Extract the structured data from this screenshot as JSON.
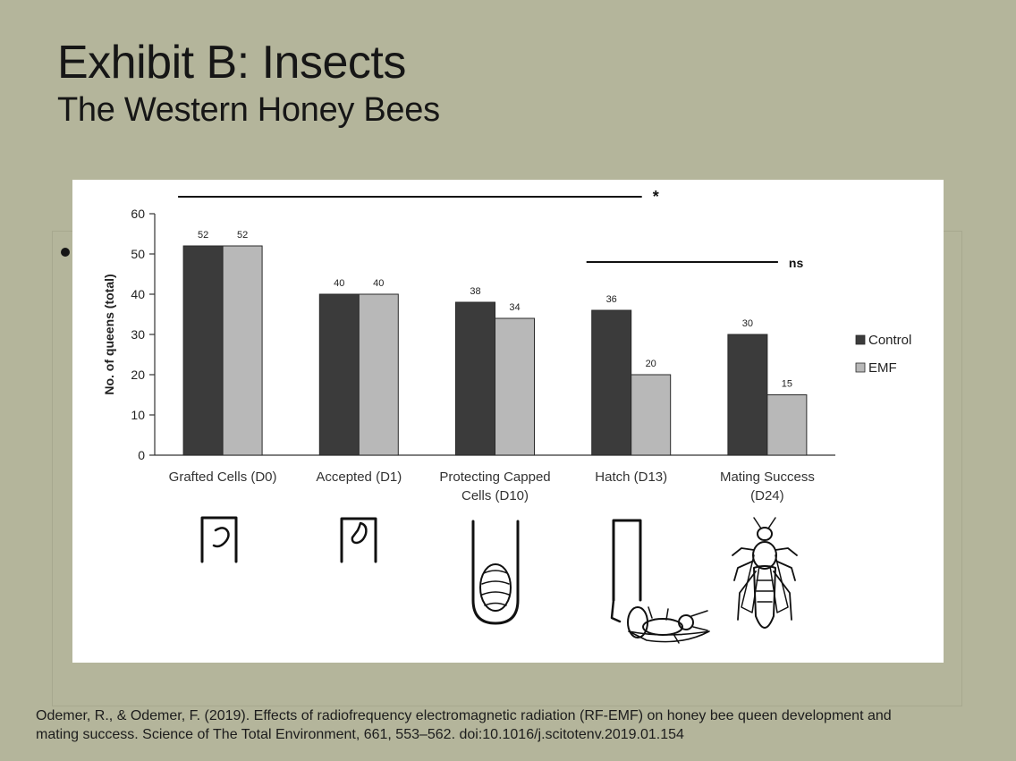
{
  "slide": {
    "title": "Exhibit B: Insects",
    "subtitle": "The Western Honey Bees"
  },
  "citation": {
    "line1": "Odemer, R., & Odemer, F. (2019). Effects of radiofrequency electromagnetic radiation (RF-EMF) on honey bee queen development and",
    "line2": "mating success. Science of The Total Environment, 661, 553–562. doi:10.1016/j.scitotenv.2019.01.154"
  },
  "chart_data": {
    "type": "bar",
    "title": "",
    "xlabel": "",
    "ylabel": "No. of queens (total)",
    "ylim": [
      0,
      60
    ],
    "yticks": [
      0,
      10,
      20,
      30,
      40,
      50,
      60
    ],
    "grid": false,
    "legend_position": "right",
    "categories": [
      [
        "Grafted Cells (D0)"
      ],
      [
        "Accepted (D1)"
      ],
      [
        "Protecting Capped",
        "Cells (D10)"
      ],
      [
        "Hatch (D13)"
      ],
      [
        "Mating Success",
        "(D24)"
      ]
    ],
    "series": [
      {
        "name": "Control",
        "color": "#3b3b3b",
        "values": [
          52,
          40,
          38,
          36,
          30
        ]
      },
      {
        "name": "EMF",
        "color": "#b8b8b8",
        "values": [
          52,
          40,
          34,
          20,
          15
        ]
      }
    ],
    "annotations": [
      {
        "label": "*",
        "from_category": 0,
        "to_category": 3
      },
      {
        "label": "ns",
        "from_category": 3,
        "to_category": 4
      }
    ],
    "illustration_icons": [
      "grafted-cell-larva-icon",
      "accepted-cell-larva-icon",
      "capped-cell-pupa-icon",
      "hatching-queen-icon",
      "adult-queen-bee-icon"
    ]
  }
}
